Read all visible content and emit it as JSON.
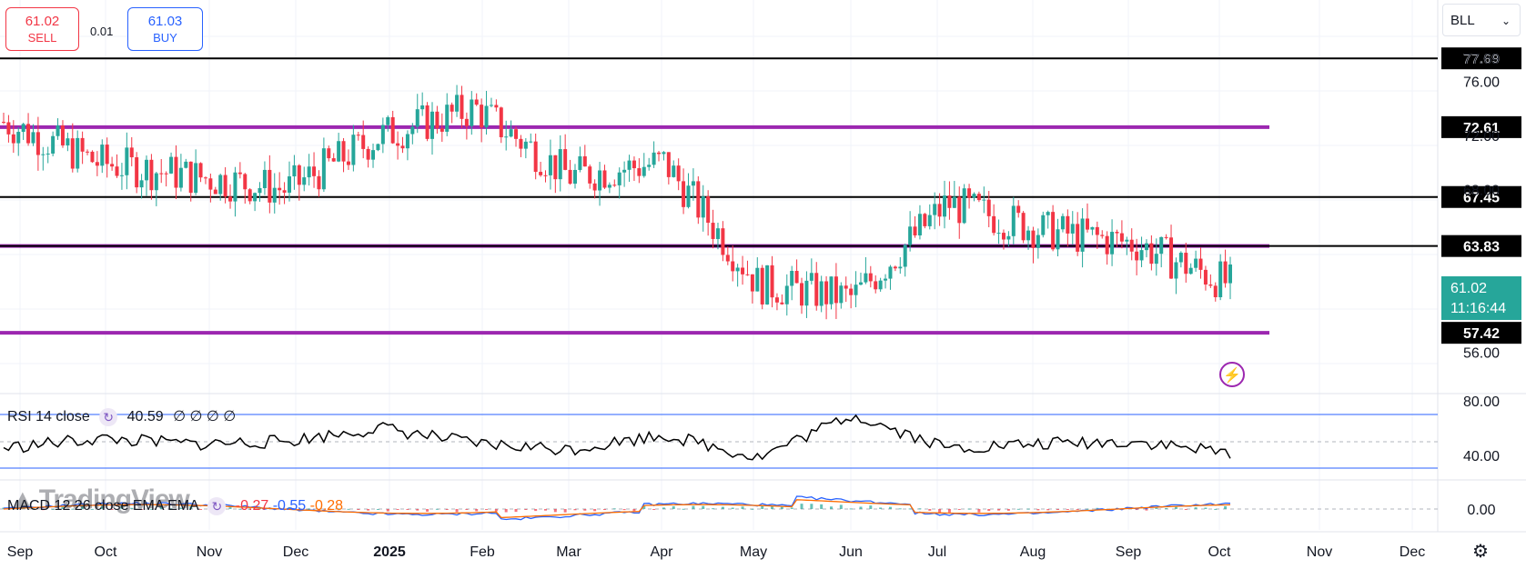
{
  "symbol": "BLL",
  "trade": {
    "sell_price": "61.02",
    "sell_label": "SELL",
    "buy_price": "61.03",
    "buy_label": "BUY",
    "spread": "0.01"
  },
  "last_price": "61.02",
  "countdown": "11:16:44",
  "price_axis_ticks": [
    "76.00",
    "56.00"
  ],
  "price_axis_partial_ticks": [
    "77.69",
    "72.00",
    "68.00"
  ],
  "levels": [
    {
      "value": 77.69,
      "label": "77.69",
      "style": "black"
    },
    {
      "value": 72.61,
      "label": "72.61",
      "style": "purple"
    },
    {
      "value": 67.45,
      "label": "67.45",
      "style": "black"
    },
    {
      "value": 63.83,
      "label": "63.83",
      "style": "both"
    },
    {
      "value": 57.42,
      "label": "57.42",
      "style": "purple"
    }
  ],
  "time_axis": [
    "Sep",
    "Oct",
    "Nov",
    "Dec",
    "2025",
    "Feb",
    "Mar",
    "Apr",
    "May",
    "Jun",
    "Jul",
    "Aug",
    "Sep",
    "Oct",
    "Nov",
    "Dec"
  ],
  "rsi": {
    "title": "RSI 14 close",
    "value": "40.59",
    "extras": "∅ ∅ ∅ ∅",
    "axis": [
      "80.00",
      "40.00"
    ]
  },
  "macd": {
    "title": "MACD 12 26 close EMA EMA",
    "hist": "-0.27",
    "macd": "-0.55",
    "signal": "-0.28",
    "axis": [
      "0.00"
    ]
  },
  "watermark": "TradingView",
  "colors": {
    "up": "#26a69a",
    "down": "#f23645",
    "level_purple": "#9c27b0",
    "macd_line": "#2962ff",
    "signal_line": "#ff6d00",
    "rsi_band": "#2962ff"
  },
  "chart_data": {
    "type": "line",
    "title": "",
    "ylim": [
      53,
      82
    ],
    "x": [
      "Sep",
      "Oct",
      "Nov",
      "Dec",
      "2025",
      "Feb",
      "Mar",
      "Apr",
      "May",
      "Jun",
      "Jul",
      "Aug",
      "Sep",
      "Oct"
    ],
    "series": [
      {
        "name": "",
        "values": [
          73,
          70,
          69,
          68,
          72,
          74,
          69,
          70,
          61,
          60,
          67,
          65,
          64,
          61
        ]
      }
    ],
    "rsi": [
      45,
      52,
      48,
      50,
      60,
      48,
      44,
      55,
      38,
      70,
      45,
      48,
      50,
      41
    ],
    "last": 61.02
  }
}
